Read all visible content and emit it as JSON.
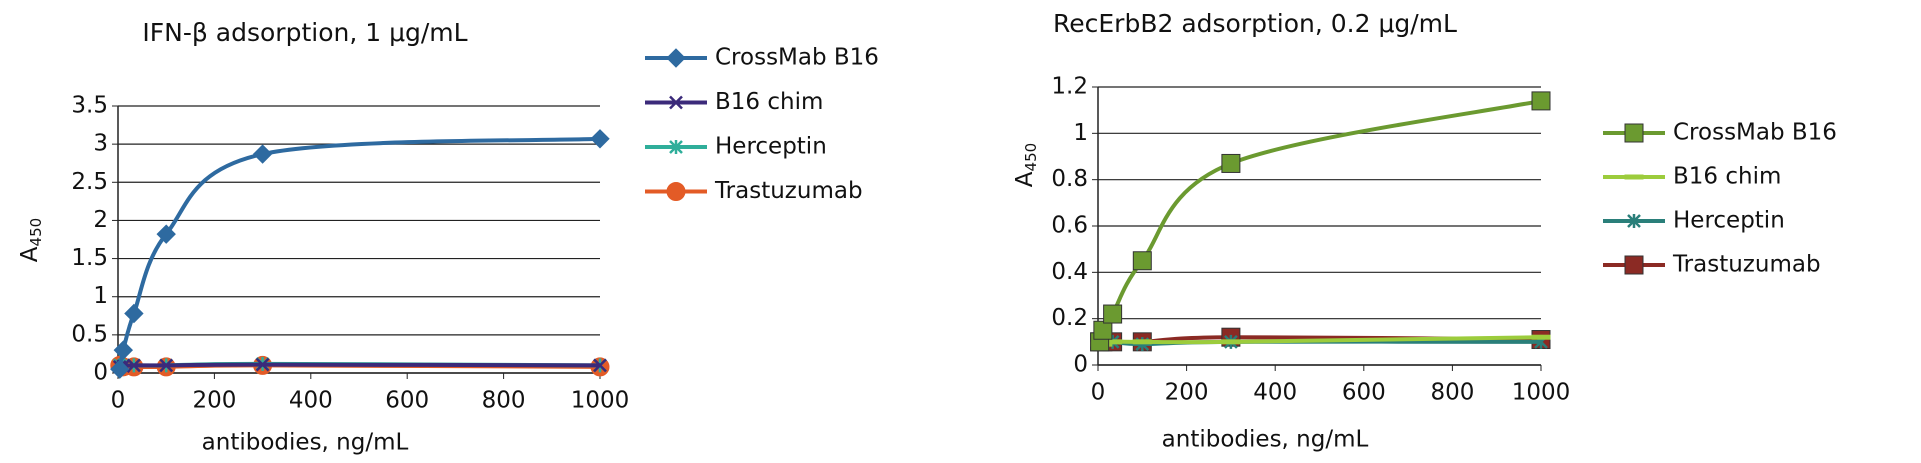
{
  "chart_data": [
    {
      "type": "line",
      "title": "IFN-β adsorption, 1 μg/mL",
      "x_label": "antibodies, ng/mL",
      "y_label": "A",
      "y_label_sub": "450",
      "x": [
        3.7,
        11,
        33,
        100,
        300,
        1000
      ],
      "series": [
        {
          "name": "CrossMab B16",
          "color": "#2e6aa0",
          "marker": "diamond",
          "values": [
            0.05,
            0.3,
            0.78,
            1.82,
            2.87,
            3.07
          ]
        },
        {
          "name": "B16 chim",
          "color": "#3b2a7a",
          "marker": "x",
          "values": [
            0.08,
            0.09,
            0.1,
            0.1,
            0.11,
            0.1
          ]
        },
        {
          "name": "Herceptin",
          "color": "#2fae9a",
          "marker": "star",
          "values": [
            0.1,
            0.1,
            0.1,
            0.1,
            0.12,
            0.1
          ]
        },
        {
          "name": "Trastuzumab",
          "color": "#e35b26",
          "marker": "circle",
          "values": [
            0.1,
            0.08,
            0.08,
            0.08,
            0.1,
            0.08
          ]
        }
      ],
      "xlim": [
        0,
        1000
      ],
      "xticks": [
        0,
        200,
        400,
        600,
        800,
        1000
      ],
      "ylim": [
        0,
        3.5
      ],
      "yticks": [
        0,
        0.5,
        1,
        1.5,
        2,
        2.5,
        3,
        3.5
      ],
      "grid": true,
      "legend": "right"
    },
    {
      "type": "line",
      "title": "RecErbB2 adsorption, 0.2 μg/mL",
      "x_label": "antibodies, ng/mL",
      "y_label": "A",
      "y_label_sub": "450",
      "x": [
        3.7,
        11,
        33,
        100,
        300,
        1000
      ],
      "series": [
        {
          "name": "CrossMab B16",
          "color": "#6b9a30",
          "marker": "square",
          "values": [
            0.1,
            0.15,
            0.22,
            0.45,
            0.87,
            1.14
          ]
        },
        {
          "name": "B16 chim",
          "color": "#9ccc3c",
          "marker": "dash",
          "values": [
            0.09,
            0.09,
            0.1,
            0.1,
            0.1,
            0.12
          ]
        },
        {
          "name": "Herceptin",
          "color": "#2a7f7a",
          "marker": "star",
          "values": [
            0.1,
            0.1,
            0.1,
            0.09,
            0.1,
            0.1
          ]
        },
        {
          "name": "Trastuzumab",
          "color": "#8b2a24",
          "marker": "square",
          "values": [
            0.1,
            0.1,
            0.1,
            0.1,
            0.12,
            0.11
          ]
        }
      ],
      "xlim": [
        0,
        1000
      ],
      "xticks": [
        0,
        200,
        400,
        600,
        800,
        1000
      ],
      "ylim": [
        0,
        1.2
      ],
      "yticks": [
        0,
        0.2,
        0.4,
        0.6,
        0.8,
        1,
        1.2
      ],
      "grid": true,
      "legend": "right"
    }
  ]
}
